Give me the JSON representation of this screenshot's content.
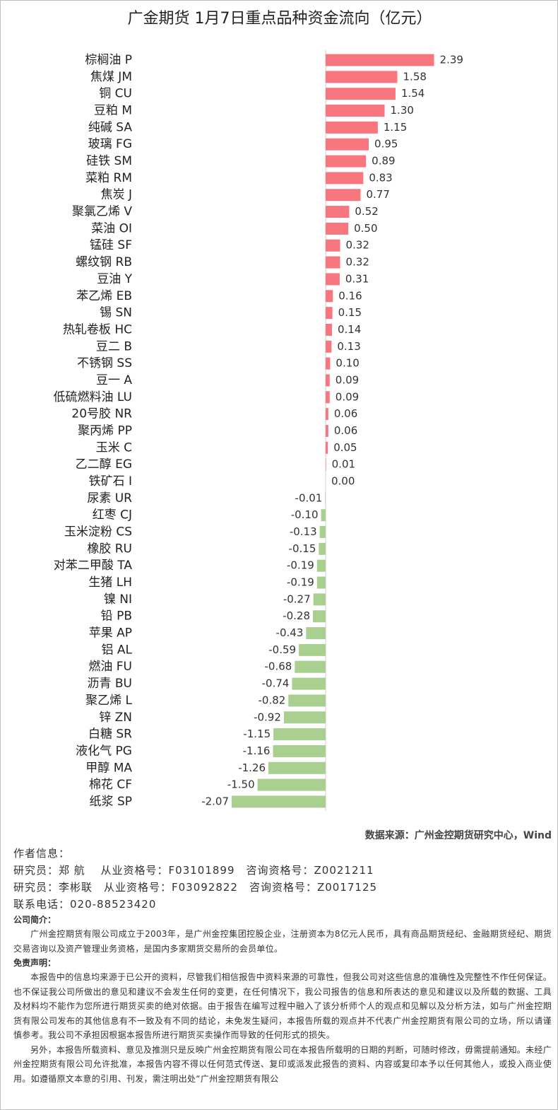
{
  "chart_data": {
    "type": "hbar",
    "title": "广金期货 1月7日重点品种资金流向（亿元）",
    "categories": [
      "棕榈油 P",
      "焦煤 JM",
      "铜 CU",
      "豆粕 M",
      "纯碱 SA",
      "玻璃 FG",
      "硅铁 SM",
      "菜粕 RM",
      "焦炭 J",
      "聚氯乙烯 V",
      "菜油 OI",
      "锰硅 SF",
      "螺纹钢 RB",
      "豆油 Y",
      "苯乙烯 EB",
      "锡 SN",
      "热轧卷板 HC",
      "豆二 B",
      "不锈钢 SS",
      "豆一 A",
      "低硫燃料油 LU",
      "20号胶 NR",
      "聚丙烯 PP",
      "玉米 C",
      "乙二醇 EG",
      "铁矿石 I",
      "尿素 UR",
      "红枣 CJ",
      "玉米淀粉 CS",
      "橡胶 RU",
      "对苯二甲酸 TA",
      "生猪 LH",
      "镍 NI",
      "铅 PB",
      "苹果 AP",
      "铝 AL",
      "燃油 FU",
      "沥青 BU",
      "聚乙烯 L",
      "锌 ZN",
      "白糖 SR",
      "液化气 PG",
      "甲醇 MA",
      "棉花 CF",
      "纸浆 SP"
    ],
    "values": [
      2.39,
      1.58,
      1.54,
      1.3,
      1.15,
      0.95,
      0.89,
      0.83,
      0.77,
      0.52,
      0.5,
      0.32,
      0.32,
      0.31,
      0.16,
      0.15,
      0.14,
      0.13,
      0.1,
      0.09,
      0.09,
      0.06,
      0.06,
      0.05,
      0.01,
      0,
      -0.01,
      -0.1,
      -0.13,
      -0.15,
      -0.19,
      -0.19,
      -0.27,
      -0.28,
      -0.43,
      -0.59,
      -0.68,
      -0.74,
      -0.82,
      -0.92,
      -1.15,
      -1.16,
      -1.26,
      -1.5,
      -2.07
    ],
    "value_labels": [
      "2.39",
      "1.58",
      "1.54",
      "1.30",
      "1.15",
      "0.95",
      "0.89",
      "0.83",
      "0.77",
      "0.52",
      "0.50",
      "0.32",
      "0.32",
      "0.31",
      "0.16",
      "0.15",
      "0.14",
      "0.13",
      "0.10",
      "0.09",
      "0.09",
      "0.06",
      "0.06",
      "0.05",
      "0.01",
      "0.00",
      "-0.01",
      "-0.10",
      "-0.13",
      "-0.15",
      "-0.19",
      "-0.19",
      "-0.27",
      "-0.28",
      "-0.43",
      "-0.59",
      "-0.68",
      "-0.74",
      "-0.82",
      "-0.92",
      "-1.15",
      "-1.16",
      "-1.26",
      "-1.50",
      "-2.07"
    ],
    "colors": {
      "positive": "#f8777f",
      "negative": "#a9d08e"
    },
    "source": "数据来源：广州金控期货研究中心，Wind"
  },
  "document": {
    "author_heading": "作者信息：",
    "authors": [
      "研究员：郑 航　 从业资格号：F03101899　咨询资格号：Z0021211",
      "研究员：李彬联　从业资格号：F03092822　咨询资格号：Z0017125"
    ],
    "phone": "联系电话：020-88523420",
    "intro_heading": "公司简介：",
    "intro": "广州金控期货有限公司成立于2003年，是广州金控集团控股企业，注册资本为8亿元人民币，具有商品期货经纪、金融期货经纪、期货交易咨询以及资产管理业务资格，是国内多家期货交易所的会员单位。",
    "disclaimer_heading": "免责声明：",
    "disclaimer": [
      "本报告中的信息均来源于已公开的资料，尽管我们相信报告中资料来源的可靠性，但我公司对这些信息的准确性及完整性不作任何保证。也不保证我公司所做出的意见和建议不会发生任何的变更，在任何情况下，我公司报告的信息和所表达的意见和建议以及所载的数据、工具及材料均不能作为您所进行期货买卖的绝对依据。由于报告在编写过程中融入了该分析师个人的观点和见解以及分析方法，如与广州金控期货有限公司发布的其他信息有不一致及有不同的结论，未免发生疑问，本报告所载的观点并不代表广州金控期货有限公司的立场，所以请谨慎参考。我公司不承担因根据本报告所进行期货买卖操作而导致的任何形式的损失。",
      "另外，本报告所载资料、意见及推测只是反映广州金控期货有限公司在本报告所载明的日期的判断，可随时修改，毋需提前通知。未经广州金控期货有限公司允许批准，本报告内容不得以任何范式传送、复印或派发此报告的资料、内容或复印本予以任何其他人，或投入商业使用。如遵循原文本意的引用、刊发，需注明出处“广州金控期货有限公"
    ]
  }
}
